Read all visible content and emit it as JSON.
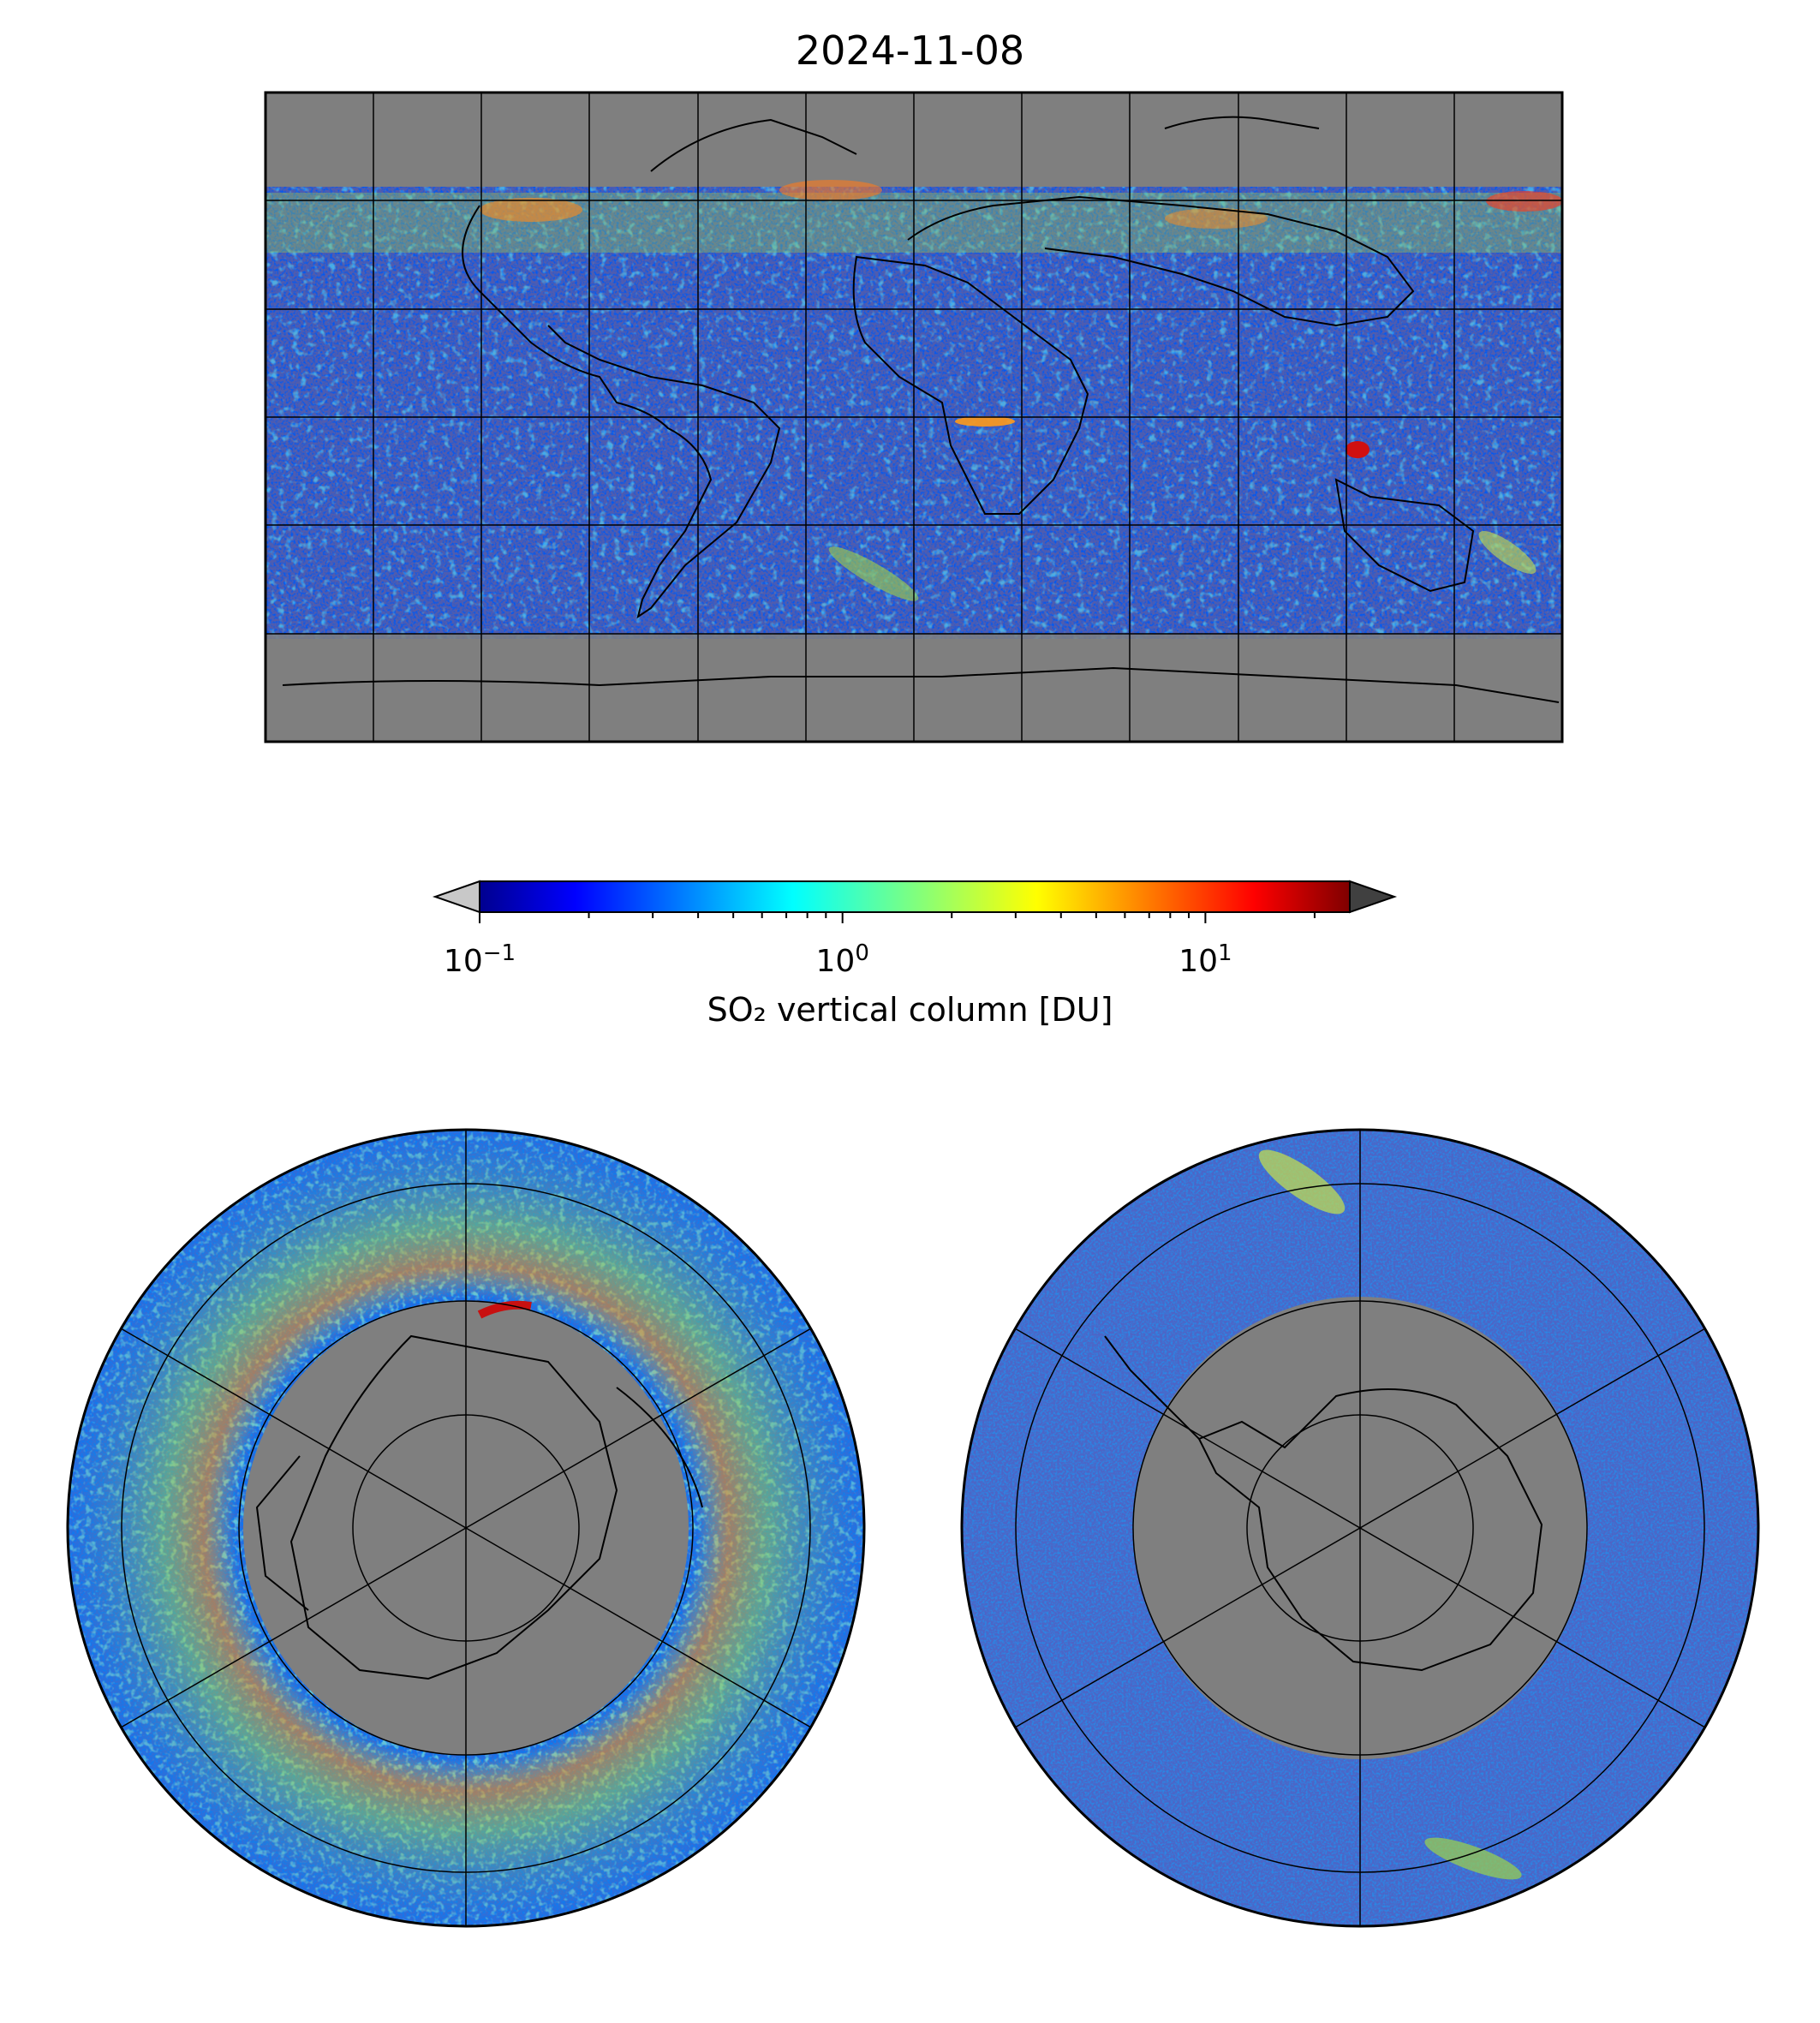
{
  "title": "2024-11-08",
  "colorbar": {
    "label": "SO₂ vertical column [DU]",
    "scale": "log",
    "min": 0.1,
    "max": 25,
    "extend": "both",
    "under_color": "#c8c8c8",
    "over_color": "#404040",
    "colormap": "jet",
    "ticks": [
      {
        "base": "10",
        "exp": "−1",
        "value": 0.1
      },
      {
        "base": "10",
        "exp": "0",
        "value": 1
      },
      {
        "base": "10",
        "exp": "1",
        "value": 10
      }
    ]
  },
  "maps": [
    {
      "projection": "plate-carree",
      "extent": [
        -180,
        180,
        -90,
        90
      ],
      "gridlines": "30°"
    },
    {
      "projection": "north-polar-stereographic",
      "gridlines": "yes"
    },
    {
      "projection": "south-polar-stereographic",
      "gridlines": "yes"
    }
  ],
  "colors": {
    "no_data": "#7f7f7f",
    "background_low": "#a9a9a9"
  }
}
